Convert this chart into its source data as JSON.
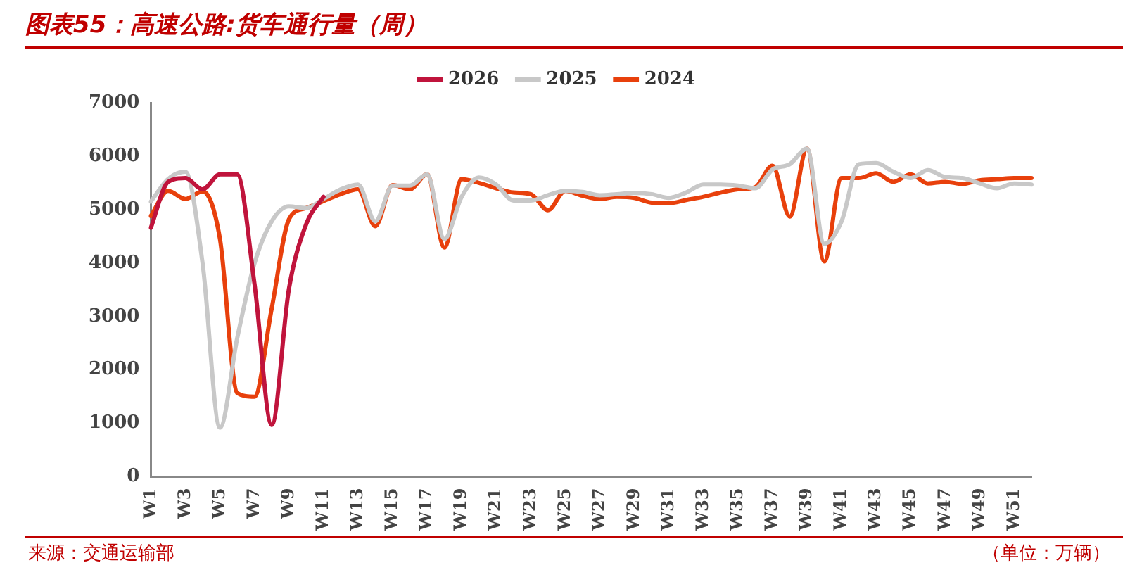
{
  "chart_data": {
    "type": "line",
    "title": "图表55：高速公路:货车通行量（周）",
    "categories": [
      "W1",
      null,
      "W3",
      null,
      "W5",
      null,
      "W7",
      null,
      "W9",
      null,
      "W11",
      null,
      "W13",
      null,
      "W15",
      null,
      "W17",
      null,
      "W19",
      null,
      "W21",
      null,
      "W23",
      null,
      "W25",
      null,
      "W27",
      null,
      "W29",
      null,
      "W31",
      null,
      "W33",
      null,
      "W35",
      null,
      "W37",
      null,
      "W39",
      null,
      "W41",
      null,
      "W43",
      null,
      "W45",
      null,
      "W47",
      null,
      "W49",
      null,
      "W51",
      null
    ],
    "series": [
      {
        "name": "2026",
        "color": "#c0143c",
        "values": [
          4660,
          5520,
          5590,
          5380,
          5660,
          5660,
          3620,
          970,
          3520,
          4730,
          5240,
          null,
          null,
          null,
          null,
          null,
          null,
          null,
          null,
          null,
          null,
          null,
          null,
          null,
          null,
          null,
          null,
          null,
          null,
          null,
          null,
          null,
          null,
          null,
          null,
          null,
          null,
          null,
          null,
          null,
          null,
          null,
          null,
          null,
          null,
          null,
          null,
          null,
          null,
          null,
          null,
          null
        ]
      },
      {
        "name": "2025",
        "color": "#c8c8c8",
        "values": [
          5150,
          5570,
          5710,
          3990,
          920,
          2590,
          3990,
          4780,
          5060,
          5030,
          5200,
          5380,
          5470,
          4780,
          5450,
          5450,
          5660,
          4450,
          5240,
          5600,
          5470,
          5170,
          5170,
          5270,
          5350,
          5330,
          5270,
          5290,
          5310,
          5290,
          5220,
          5320,
          5470,
          5470,
          5450,
          5400,
          5750,
          5850,
          6140,
          4360,
          4780,
          5850,
          5870,
          5710,
          5590,
          5740,
          5610,
          5590,
          5490,
          5400,
          5490,
          5470
        ]
      },
      {
        "name": "2024",
        "color": "#e8400c",
        "values": [
          4880,
          5350,
          5200,
          5340,
          4460,
          1570,
          1500,
          3150,
          4820,
          5030,
          5160,
          5290,
          5380,
          4690,
          5460,
          5380,
          5660,
          4290,
          5570,
          5500,
          5400,
          5320,
          5290,
          4990,
          5350,
          5260,
          5200,
          5240,
          5220,
          5130,
          5120,
          5180,
          5240,
          5320,
          5380,
          5420,
          5820,
          4870,
          6140,
          4030,
          5590,
          5590,
          5680,
          5520,
          5660,
          5490,
          5520,
          5480,
          5550,
          5570,
          5590,
          5590
        ]
      }
    ],
    "ylim": [
      0,
      7000
    ],
    "yticks": [
      0,
      1000,
      2000,
      3000,
      4000,
      5000,
      6000,
      7000
    ],
    "grid": false,
    "legend": "top",
    "marker": "none",
    "line_style": "solid",
    "annotations": [
      "来源：交通运输部",
      "（单位：万辆）"
    ]
  }
}
